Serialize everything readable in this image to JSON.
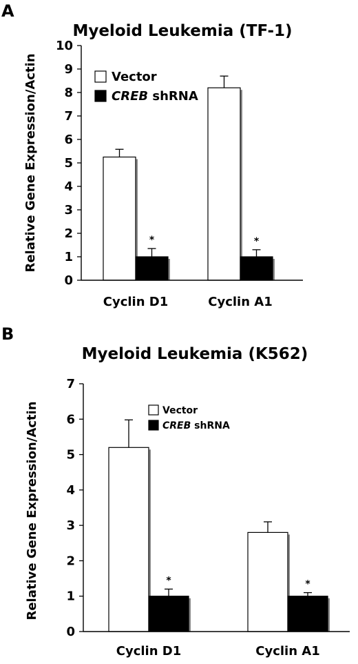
{
  "chart_data": [
    {
      "panel_label": "A",
      "type": "bar",
      "title": "Myeloid Leukemia (TF-1)",
      "ylabel": "Relative Gene Expression/Actin",
      "xlabel": "",
      "ylim": [
        0,
        10
      ],
      "yticks": [
        "0",
        "1",
        "2",
        "3",
        "4",
        "5",
        "6",
        "7",
        "8",
        "9",
        "10"
      ],
      "categories": [
        "Cyclin D1",
        "Cyclin A1"
      ],
      "series": [
        {
          "name": "Vector",
          "name_italic": "",
          "name_rest": "Vector",
          "color": "#ffffff",
          "values": [
            5.25,
            8.2
          ],
          "errors": [
            0.33,
            0.5
          ],
          "significance": [
            "",
            ""
          ]
        },
        {
          "name": "CREB shRNA",
          "name_italic": "CREB",
          "name_rest": " shRNA",
          "color": "#000000",
          "values": [
            1.0,
            1.0
          ],
          "errors": [
            0.35,
            0.3
          ],
          "significance": [
            "*",
            "*"
          ]
        }
      ],
      "legend_position": "top-left",
      "grid": false
    },
    {
      "panel_label": "B",
      "type": "bar",
      "title": "Myeloid Leukemia (K562)",
      "ylabel": "Relative Gene Expression/Actin",
      "xlabel": "",
      "ylim": [
        0,
        7
      ],
      "yticks": [
        "0",
        "1",
        "2",
        "3",
        "4",
        "5",
        "6",
        "7"
      ],
      "categories": [
        "Cyclin D1",
        "Cyclin A1"
      ],
      "series": [
        {
          "name": "Vector",
          "name_italic": "",
          "name_rest": "Vector",
          "color": "#ffffff",
          "values": [
            5.2,
            2.8
          ],
          "errors": [
            0.78,
            0.3
          ],
          "significance": [
            "",
            ""
          ]
        },
        {
          "name": "CREB shRNA",
          "name_italic": "CREB",
          "name_rest": " shRNA",
          "color": "#000000",
          "values": [
            1.0,
            1.0
          ],
          "errors": [
            0.2,
            0.1
          ],
          "significance": [
            "*",
            "*"
          ]
        }
      ],
      "legend_position": "top-center",
      "grid": false
    }
  ]
}
